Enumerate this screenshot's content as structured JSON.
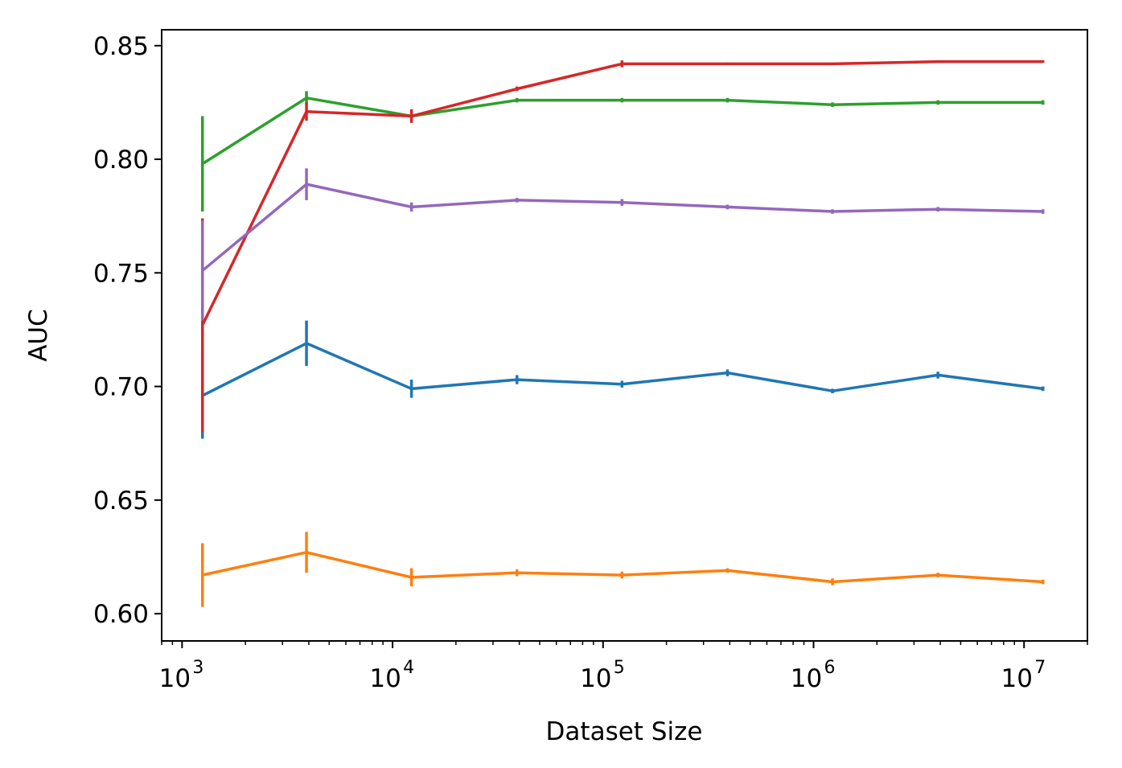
{
  "chart_data": {
    "type": "line",
    "title": "",
    "xlabel": "Dataset Size",
    "ylabel": "AUC",
    "xscale": "log",
    "xlim": [
      800,
      20000000
    ],
    "ylim": [
      0.588,
      0.857
    ],
    "grid": false,
    "legend": "none",
    "yticks": [
      {
        "value": 0.6,
        "label": "0.60"
      },
      {
        "value": 0.65,
        "label": "0.65"
      },
      {
        "value": 0.7,
        "label": "0.70"
      },
      {
        "value": 0.75,
        "label": "0.75"
      },
      {
        "value": 0.8,
        "label": "0.80"
      },
      {
        "value": 0.85,
        "label": "0.85"
      }
    ],
    "xticks": [
      {
        "value": 1000,
        "base": "10",
        "exp": "3"
      },
      {
        "value": 10000,
        "base": "10",
        "exp": "4"
      },
      {
        "value": 100000,
        "base": "10",
        "exp": "5"
      },
      {
        "value": 1000000,
        "base": "10",
        "exp": "6"
      },
      {
        "value": 10000000,
        "base": "10",
        "exp": "7"
      }
    ],
    "x": [
      1250,
      3900,
      12300,
      39000,
      123000,
      390000,
      1230000,
      3900000,
      12300000
    ],
    "series": [
      {
        "name": "blue",
        "color": "#1f77b4",
        "values": [
          0.696,
          0.719,
          0.699,
          0.703,
          0.701,
          0.706,
          0.698,
          0.705,
          0.699
        ],
        "errors": [
          0.019,
          0.01,
          0.004,
          0.002,
          0.0015,
          0.0015,
          0.001,
          0.0015,
          0.001
        ]
      },
      {
        "name": "orange",
        "color": "#ff7f0e",
        "values": [
          0.617,
          0.627,
          0.616,
          0.618,
          0.617,
          0.619,
          0.614,
          0.617,
          0.614
        ],
        "errors": [
          0.014,
          0.009,
          0.004,
          0.0015,
          0.0015,
          0.001,
          0.0015,
          0.001,
          0.001
        ]
      },
      {
        "name": "green",
        "color": "#2ca02c",
        "values": [
          0.798,
          0.827,
          0.819,
          0.826,
          0.826,
          0.826,
          0.824,
          0.825,
          0.825
        ],
        "errors": [
          0.021,
          0.003,
          0.001,
          0.001,
          0.001,
          0.001,
          0.001,
          0.001,
          0.001
        ]
      },
      {
        "name": "red",
        "color": "#d62728",
        "values": [
          0.727,
          0.821,
          0.819,
          0.831,
          0.842,
          0.842,
          0.842,
          0.843,
          0.843
        ],
        "errors": [
          0.047,
          0.004,
          0.003,
          0.001,
          0.0015,
          0.0005,
          0.0005,
          0.0005,
          0.0005
        ]
      },
      {
        "name": "purple",
        "color": "#9467bd",
        "values": [
          0.751,
          0.789,
          0.779,
          0.782,
          0.781,
          0.779,
          0.777,
          0.778,
          0.777
        ],
        "errors": [
          0.022,
          0.007,
          0.002,
          0.001,
          0.0015,
          0.001,
          0.001,
          0.001,
          0.001
        ]
      }
    ]
  }
}
